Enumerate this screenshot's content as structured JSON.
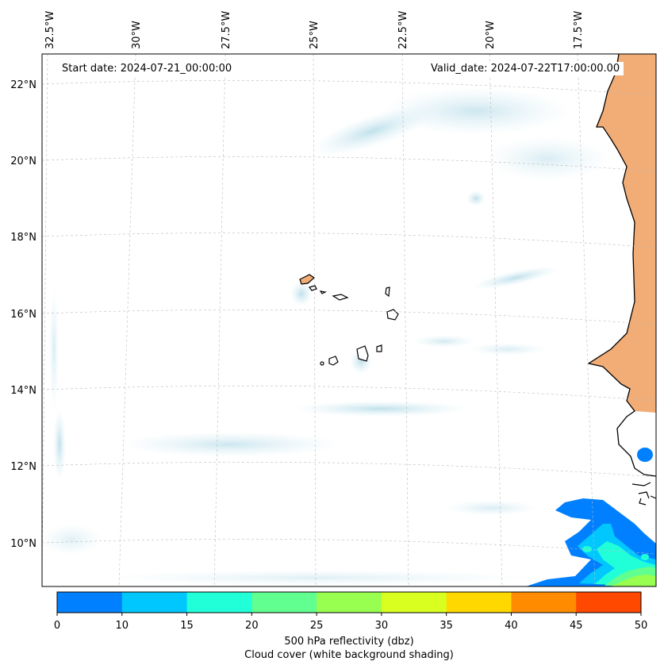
{
  "map": {
    "start_label": "Start date: 2024-07-21_00:00:00",
    "valid_label": "Valid_date: 2024-07-22T17:00:00.00",
    "lon_labels": [
      "32.5°W",
      "30°W",
      "27.5°W",
      "25°W",
      "22.5°W",
      "20°W",
      "17.5°W"
    ],
    "lat_labels": [
      "22°N",
      "20°N",
      "18°N",
      "16°N",
      "14°N",
      "12°N",
      "10°N"
    ],
    "gridlines": true,
    "colors": {
      "land_shading": "#f0a56a",
      "cloud_shading": "#d4ebf2",
      "coastline": "#000000"
    }
  },
  "colorbar": {
    "ticks": [
      "0",
      "10",
      "15",
      "20",
      "25",
      "30",
      "35",
      "40",
      "45",
      "50"
    ],
    "colors": [
      "#0080ff",
      "#00c8ff",
      "#20ffd8",
      "#60ff90",
      "#98ff50",
      "#d8ff20",
      "#ffd800",
      "#ff8c00",
      "#ff4800"
    ],
    "title_line1": "500 hPa reflectivity (dbz)",
    "title_line2": "Cloud cover (white background shading)"
  }
}
